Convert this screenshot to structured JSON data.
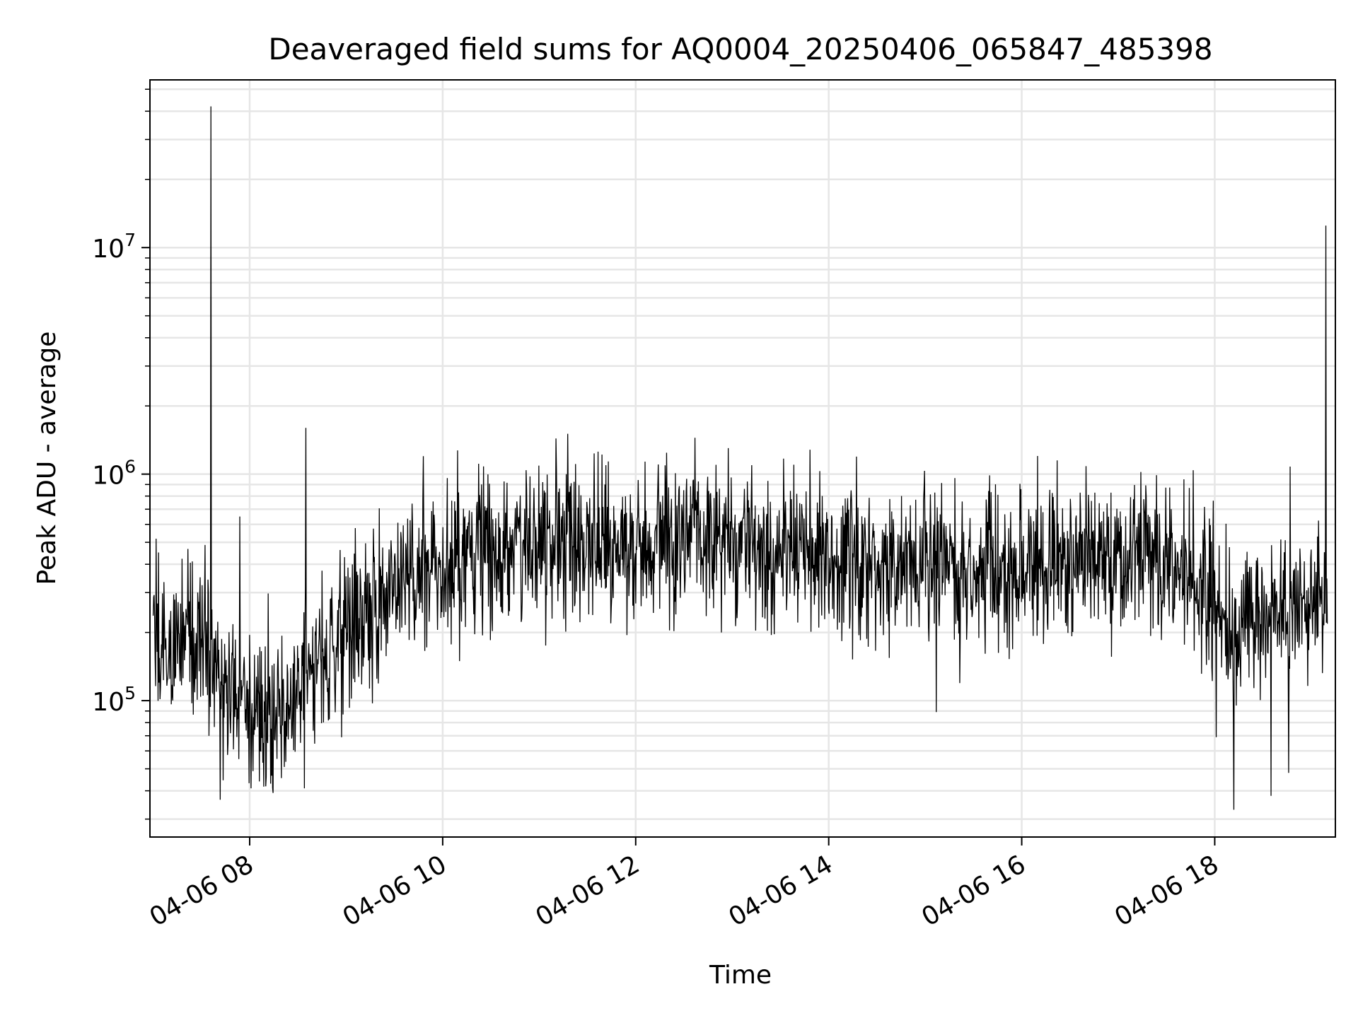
{
  "chart_data": {
    "type": "line",
    "title": "Deaveraged field sums for AQ0004_20250406_065847_485398",
    "xlabel": "Time",
    "ylabel": "Peak ADU - average",
    "x_ticks": [
      {
        "value": "2025-04-06T08:00",
        "label": "04-06 08"
      },
      {
        "value": "2025-04-06T10:00",
        "label": "04-06 10"
      },
      {
        "value": "2025-04-06T12:00",
        "label": "04-06 12"
      },
      {
        "value": "2025-04-06T14:00",
        "label": "04-06 14"
      },
      {
        "value": "2025-04-06T16:00",
        "label": "04-06 16"
      },
      {
        "value": "2025-04-06T18:00",
        "label": "04-06 18"
      }
    ],
    "y_ticks": [
      {
        "value": 100000,
        "label_base": "10",
        "label_exp": "5"
      },
      {
        "value": 1000000,
        "label_base": "10",
        "label_exp": "6"
      },
      {
        "value": 10000000,
        "label_base": "10",
        "label_exp": "7"
      }
    ],
    "y_scale": "log",
    "xlim": [
      "2025-04-06T06:58",
      "2025-04-06T19:15"
    ],
    "ylim": [
      25000,
      55000000
    ],
    "grid": true,
    "line_color": "#000000",
    "grid_color": "#e6e6e6",
    "series": [
      {
        "points": [
          [
            "2025-04-06T07:00",
            160000
          ],
          [
            "2025-04-06T07:05",
            190000
          ],
          [
            "2025-04-06T07:10",
            170000
          ],
          [
            "2025-04-06T07:15",
            180000
          ],
          [
            "2025-04-06T07:20",
            200000
          ],
          [
            "2025-04-06T07:25",
            175000
          ],
          [
            "2025-04-06T07:30",
            185000
          ],
          [
            "2025-04-06T07:35",
            150000
          ],
          [
            "2025-04-06T07:40",
            120000
          ],
          [
            "2025-04-06T07:45",
            115000
          ],
          [
            "2025-04-06T07:50",
            110000
          ],
          [
            "2025-04-06T07:55",
            105000
          ],
          [
            "2025-04-06T08:00",
            100000
          ],
          [
            "2025-04-06T08:05",
            95000
          ],
          [
            "2025-04-06T08:10",
            92000
          ],
          [
            "2025-04-06T08:15",
            90000
          ],
          [
            "2025-04-06T08:20",
            95000
          ],
          [
            "2025-04-06T08:25",
            110000
          ],
          [
            "2025-04-06T08:30",
            120000
          ],
          [
            "2025-04-06T08:35",
            130000
          ],
          [
            "2025-04-06T08:40",
            140000
          ],
          [
            "2025-04-06T08:45",
            150000
          ],
          [
            "2025-04-06T08:50",
            160000
          ],
          [
            "2025-04-06T08:55",
            175000
          ],
          [
            "2025-04-06T09:00",
            200000
          ],
          [
            "2025-04-06T09:10",
            240000
          ],
          [
            "2025-04-06T09:20",
            290000
          ],
          [
            "2025-04-06T09:30",
            330000
          ],
          [
            "2025-04-06T09:40",
            360000
          ],
          [
            "2025-04-06T09:50",
            390000
          ],
          [
            "2025-04-06T10:00",
            410000
          ],
          [
            "2025-04-06T10:15",
            430000
          ],
          [
            "2025-04-06T10:30",
            440000
          ],
          [
            "2025-04-06T10:45",
            460000
          ],
          [
            "2025-04-06T11:00",
            480000
          ],
          [
            "2025-04-06T11:15",
            490000
          ],
          [
            "2025-04-06T11:30",
            500000
          ],
          [
            "2025-04-06T11:45",
            505000
          ],
          [
            "2025-04-06T12:00",
            510000
          ],
          [
            "2025-04-06T12:15",
            515000
          ],
          [
            "2025-04-06T12:30",
            520000
          ],
          [
            "2025-04-06T12:45",
            515000
          ],
          [
            "2025-04-06T13:00",
            505000
          ],
          [
            "2025-04-06T13:15",
            495000
          ],
          [
            "2025-04-06T13:30",
            480000
          ],
          [
            "2025-04-06T13:45",
            460000
          ],
          [
            "2025-04-06T14:00",
            440000
          ],
          [
            "2025-04-06T14:15",
            420000
          ],
          [
            "2025-04-06T14:30",
            400000
          ],
          [
            "2025-04-06T14:45",
            390000
          ],
          [
            "2025-04-06T15:00",
            380000
          ],
          [
            "2025-04-06T15:15",
            375000
          ],
          [
            "2025-04-06T15:30",
            370000
          ],
          [
            "2025-04-06T15:45",
            375000
          ],
          [
            "2025-04-06T16:00",
            385000
          ],
          [
            "2025-04-06T16:15",
            400000
          ],
          [
            "2025-04-06T16:30",
            410000
          ],
          [
            "2025-04-06T16:45",
            420000
          ],
          [
            "2025-04-06T17:00",
            420000
          ],
          [
            "2025-04-06T17:15",
            410000
          ],
          [
            "2025-04-06T17:30",
            380000
          ],
          [
            "2025-04-06T17:45",
            330000
          ],
          [
            "2025-04-06T18:00",
            260000
          ],
          [
            "2025-04-06T18:15",
            230000
          ],
          [
            "2025-04-06T18:30",
            240000
          ],
          [
            "2025-04-06T18:45",
            270000
          ],
          [
            "2025-04-06T19:00",
            290000
          ],
          [
            "2025-04-06T19:10",
            300000
          ]
        ],
        "spikes": [
          [
            "2025-04-06T07:36",
            42000000
          ],
          [
            "2025-04-06T08:35",
            1600000
          ],
          [
            "2025-04-06T08:34",
            870000
          ],
          [
            "2025-04-06T07:54",
            650000
          ],
          [
            "2025-04-06T09:48",
            1200000
          ],
          [
            "2025-04-06T11:39",
            1220000
          ],
          [
            "2025-04-06T13:32",
            1170000
          ],
          [
            "2025-04-06T16:22",
            1150000
          ],
          [
            "2025-04-06T18:47",
            1080000
          ],
          [
            "2025-04-06T19:09",
            12500000
          ]
        ],
        "dips": [
          [
            "2025-04-06T08:01",
            41000
          ],
          [
            "2025-04-06T08:13",
            43000
          ],
          [
            "2025-04-06T08:34",
            41000
          ],
          [
            "2025-04-06T15:07",
            89000
          ],
          [
            "2025-04-06T18:01",
            69000
          ],
          [
            "2025-04-06T18:12",
            33000
          ],
          [
            "2025-04-06T18:35",
            38000
          ],
          [
            "2025-04-06T18:46",
            48000
          ]
        ]
      }
    ]
  }
}
